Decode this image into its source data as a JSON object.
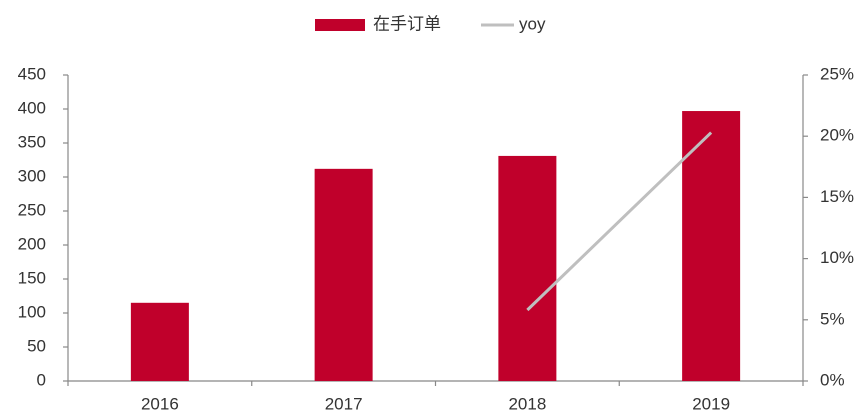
{
  "chart_data": {
    "type": "combo",
    "categories": [
      "2016",
      "2017",
      "2018",
      "2019"
    ],
    "series": [
      {
        "name": "在手订单",
        "type": "bar",
        "color": "#c0002b",
        "values": [
          115,
          312,
          331,
          397
        ]
      },
      {
        "name": "yoy",
        "type": "line",
        "color": "#bfbfbf",
        "axis": "y2",
        "values": [
          null,
          null,
          5.8,
          20.3
        ]
      }
    ],
    "ylim": [
      0,
      450
    ],
    "yticks": [
      0,
      50,
      100,
      150,
      200,
      250,
      300,
      350,
      400,
      450
    ],
    "y2lim": [
      0,
      25
    ],
    "y2ticks": [
      {
        "value": 0,
        "label": "0%"
      },
      {
        "value": 5,
        "label": "5%"
      },
      {
        "value": 10,
        "label": "10%"
      },
      {
        "value": 15,
        "label": "15%"
      },
      {
        "value": 20,
        "label": "20%"
      },
      {
        "value": 25,
        "label": "25%"
      }
    ],
    "legend": "top"
  }
}
